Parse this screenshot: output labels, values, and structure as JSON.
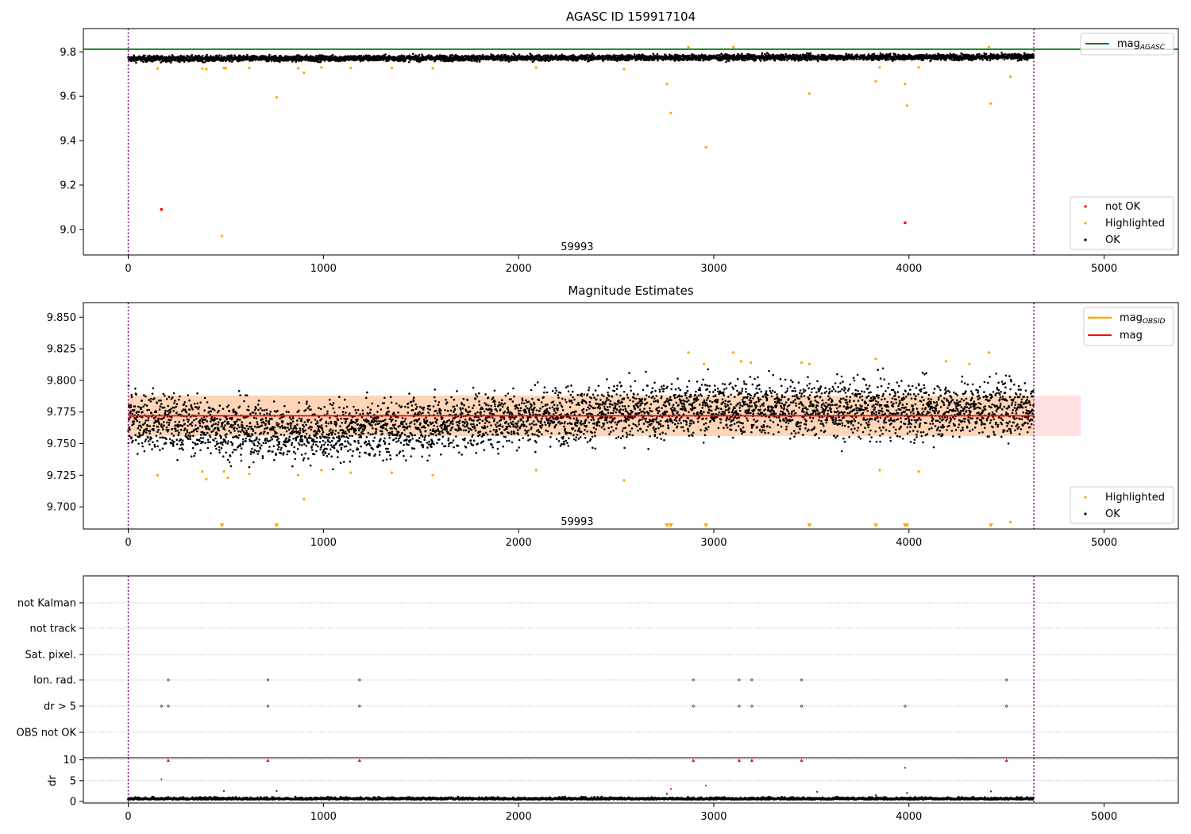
{
  "chart_data": [
    {
      "type": "scatter",
      "title": "AGASC ID 159917104",
      "xlim": [
        -230,
        5380
      ],
      "ylim": [
        8.885,
        9.905
      ],
      "xticks": [
        0,
        1000,
        2000,
        3000,
        4000,
        5000
      ],
      "yticks": [
        9.0,
        9.2,
        9.4,
        9.6,
        9.8
      ],
      "ytick_labels": [
        "9.0",
        "9.2",
        "9.4",
        "9.6",
        "9.8"
      ],
      "annotation": {
        "text": "59993",
        "x": 2300,
        "y": 8.92
      },
      "obs_bounds": [
        0,
        4640
      ],
      "reference_line": {
        "y": 9.812,
        "color": "#008000",
        "legend": "mag",
        "legend_sub": "AGASC"
      },
      "legend_points": [
        {
          "label": "not OK",
          "color": "#ff0000"
        },
        {
          "label": "Highlighted",
          "color": "#ffa500"
        },
        {
          "label": "OK",
          "color": "#000000"
        }
      ],
      "ok_band": {
        "start": 9.769,
        "end": 9.778,
        "spread": 0.012
      },
      "highlighted_points": [
        [
          150,
          9.725
        ],
        [
          380,
          9.725
        ],
        [
          400,
          9.722
        ],
        [
          480,
          8.97
        ],
        [
          490,
          9.728
        ],
        [
          500,
          9.726
        ],
        [
          620,
          9.728
        ],
        [
          760,
          9.595
        ],
        [
          870,
          9.726
        ],
        [
          900,
          9.706
        ],
        [
          990,
          9.73
        ],
        [
          1140,
          9.727
        ],
        [
          1350,
          9.727
        ],
        [
          1560,
          9.726
        ],
        [
          2090,
          9.73
        ],
        [
          2540,
          9.722
        ],
        [
          2760,
          9.655
        ],
        [
          2780,
          9.525
        ],
        [
          2870,
          9.822
        ],
        [
          2960,
          9.37
        ],
        [
          3100,
          9.822
        ],
        [
          3490,
          9.612
        ],
        [
          3830,
          9.668
        ],
        [
          3850,
          9.73
        ],
        [
          3980,
          9.655
        ],
        [
          3990,
          9.558
        ],
        [
          4050,
          9.73
        ],
        [
          4410,
          9.822
        ],
        [
          4420,
          9.567
        ],
        [
          4520,
          9.688
        ]
      ],
      "not_ok_points": [
        [
          170,
          9.09
        ],
        [
          3980,
          9.03
        ]
      ]
    },
    {
      "type": "scatter",
      "title": "Magnitude Estimates",
      "xlim": [
        -230,
        5380
      ],
      "ylim": [
        9.6825,
        9.8615
      ],
      "xticks": [
        0,
        1000,
        2000,
        3000,
        4000,
        5000
      ],
      "yticks": [
        9.7,
        9.725,
        9.75,
        9.775,
        9.8,
        9.825,
        9.85
      ],
      "ytick_labels": [
        "9.700",
        "9.725",
        "9.750",
        "9.775",
        "9.800",
        "9.825",
        "9.850"
      ],
      "annotation": {
        "text": "59993",
        "x": 2300,
        "y": 9.688
      },
      "obs_bounds": [
        0,
        4640
      ],
      "mag_line": {
        "y": 9.772,
        "color": "#ff0000",
        "legend": "mag",
        "band": [
          9.756,
          9.788
        ],
        "band_x": [
          0,
          4880
        ]
      },
      "mag_obsid": {
        "color": "#ffa500",
        "legend": "mag",
        "legend_sub": "OBSID",
        "band": [
          9.756,
          9.788
        ],
        "band_x": [
          0,
          4640
        ]
      },
      "legend_points": [
        {
          "label": "Highlighted",
          "color": "#ffa500"
        },
        {
          "label": "OK",
          "color": "#000000"
        }
      ],
      "ok_trend": [
        [
          0,
          9.77
        ],
        [
          500,
          9.762
        ],
        [
          1000,
          9.758
        ],
        [
          1500,
          9.764
        ],
        [
          2000,
          9.771
        ],
        [
          2500,
          9.774
        ],
        [
          3000,
          9.779
        ],
        [
          3500,
          9.778
        ],
        [
          4000,
          9.776
        ],
        [
          4640,
          9.779
        ]
      ],
      "ok_spread": 0.011,
      "highlighted_points": [
        [
          150,
          9.725
        ],
        [
          380,
          9.728
        ],
        [
          400,
          9.722
        ],
        [
          490,
          9.728
        ],
        [
          510,
          9.723
        ],
        [
          620,
          9.726
        ],
        [
          870,
          9.725
        ],
        [
          900,
          9.706
        ],
        [
          990,
          9.729
        ],
        [
          1140,
          9.727
        ],
        [
          1350,
          9.727
        ],
        [
          1560,
          9.725
        ],
        [
          2090,
          9.729
        ],
        [
          2540,
          9.721
        ],
        [
          2870,
          9.822
        ],
        [
          2950,
          9.813
        ],
        [
          3100,
          9.822
        ],
        [
          3140,
          9.815
        ],
        [
          3190,
          9.814
        ],
        [
          3450,
          9.814
        ],
        [
          3490,
          9.813
        ],
        [
          3830,
          9.817
        ],
        [
          3850,
          9.729
        ],
        [
          4050,
          9.728
        ],
        [
          4190,
          9.815
        ],
        [
          4310,
          9.813
        ],
        [
          4410,
          9.822
        ],
        [
          4520,
          9.688
        ]
      ],
      "offscale_markers": [
        480,
        760,
        2760,
        2780,
        2960,
        3490,
        3830,
        3980,
        3990,
        4420
      ]
    },
    {
      "type": "scatter",
      "flags": [
        "not Kalman",
        "not track",
        "Sat. pixel.",
        "Ion. rad.",
        "dr > 5",
        "OBS not OK"
      ],
      "xlim": [
        -230,
        5380
      ],
      "obs_bounds": [
        0,
        4640
      ],
      "flag_points": {
        "Ion. rad.": [
          205,
          715,
          1185,
          2895,
          3130,
          3195,
          3450,
          4500
        ],
        "dr > 5": [
          170,
          205,
          715,
          1185,
          2895,
          3130,
          3195,
          3450,
          3980,
          4500
        ]
      }
    },
    {
      "type": "scatter",
      "ylabel": "dr",
      "xlim": [
        -230,
        5380
      ],
      "ylim": [
        -0.4,
        10.5
      ],
      "xticks": [
        0,
        1000,
        2000,
        3000,
        4000,
        5000
      ],
      "yticks": [
        0,
        5,
        10
      ],
      "ytick_labels": [
        "0",
        "5",
        "10"
      ],
      "obs_bounds": [
        0,
        4640
      ],
      "red_points": [
        [
          170,
          5.3
        ],
        [
          205,
          9.8
        ],
        [
          715,
          9.8
        ],
        [
          1185,
          9.8
        ],
        [
          2780,
          3.0
        ],
        [
          2895,
          9.8
        ],
        [
          2960,
          3.8
        ],
        [
          3130,
          9.8
        ],
        [
          3195,
          9.8
        ],
        [
          3450,
          9.8
        ],
        [
          3980,
          8.1
        ],
        [
          4500,
          9.8
        ]
      ],
      "dark_points": [
        [
          490,
          2.5
        ],
        [
          760,
          2.5
        ],
        [
          2760,
          1.8
        ],
        [
          3530,
          2.3
        ],
        [
          3830,
          1.5
        ],
        [
          3990,
          2.0
        ],
        [
          4420,
          2.4
        ]
      ],
      "baseline": {
        "mean": 0.45,
        "spread": 0.4
      }
    }
  ]
}
